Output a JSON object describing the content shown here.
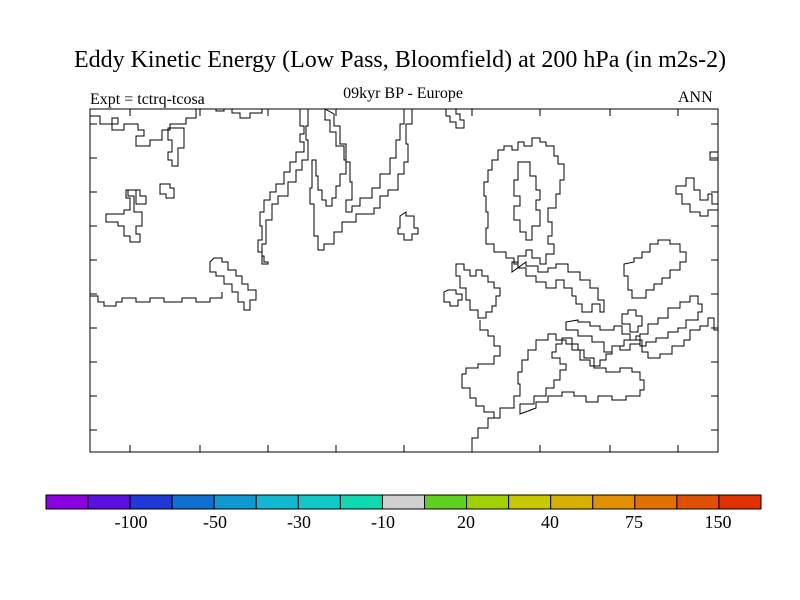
{
  "title": "Eddy Kinetic Energy (Low Pass, Bloomfield) at 200 hPa (in m2s-2)",
  "experiment": "Expt = tctrq-tcosa",
  "subtitle": "09kyr BP - Europe",
  "season": "ANN",
  "colorbar": {
    "colors": [
      "#8a00e0",
      "#5a10e0",
      "#2038d8",
      "#1070d0",
      "#1098d0",
      "#10b8d0",
      "#10c8c8",
      "#10d8b0",
      "#d0d0d0",
      "#60d020",
      "#a0d000",
      "#c8c800",
      "#d8b000",
      "#e09000",
      "#e07000",
      "#e05000",
      "#e03000"
    ],
    "labels": [
      "-100",
      "-50",
      "-30",
      "-10",
      "20",
      "40",
      "75",
      "150"
    ]
  }
}
